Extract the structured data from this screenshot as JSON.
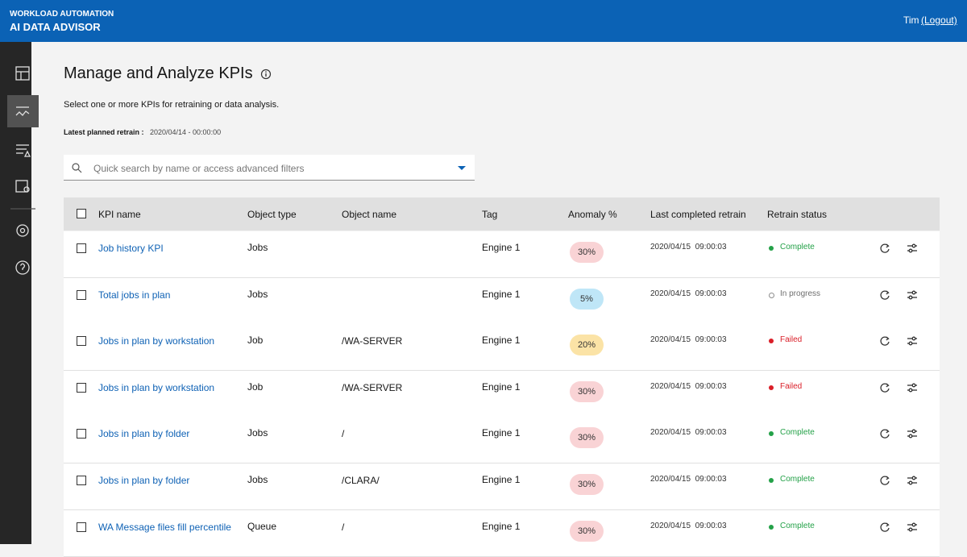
{
  "header": {
    "product_line": "WORKLOAD AUTOMATION",
    "title": "AI DATA ADVISOR",
    "user": "Tim",
    "logout": "(Logout)"
  },
  "page": {
    "title": "Manage and Analyze KPIs",
    "description": "Select one or more KPIs for retraining or data analysis.",
    "retrain_label": "Latest planned retrain :",
    "retrain_value": "2020/04/14 - 00:00:00",
    "search_placeholder": "Quick search by name or access advanced filters"
  },
  "table": {
    "columns": [
      "KPI name",
      "Object type",
      "Object name",
      "Tag",
      "Anomaly %",
      "Last completed retrain",
      "Retrain status"
    ],
    "rows": [
      {
        "kpi_name": "Job history KPI",
        "object_type": "Jobs",
        "object_name": null,
        "tag": "Engine 1",
        "anomaly": "30%",
        "anomaly_color": "#f9d3d5",
        "last_retrain": "2020/04/15  09:00:03",
        "retrain_status": "Complete",
        "status_color": "#24a148",
        "status_filled": true
      },
      {
        "kpi_name": "Total jobs in plan",
        "object_type": "Jobs",
        "object_name": null,
        "tag": "Engine 1",
        "anomaly": "5%",
        "anomaly_color": "#bfe6f7",
        "last_retrain": "2020/04/15  09:00:03",
        "retrain_status": "In progress",
        "status_color": "#8d8d8d",
        "status_filled": false
      },
      {
        "kpi_name": "Jobs in plan by workstation",
        "object_type": "Job",
        "object_name": "/WA-SERVER",
        "tag": "Engine 1",
        "anomaly": "20%",
        "anomaly_color": "#fbe3a6",
        "last_retrain": "2020/04/15  09:00:03",
        "retrain_status": "Failed",
        "status_color": "#da1e28",
        "status_filled": true
      },
      {
        "kpi_name": "Jobs in plan by workstation",
        "object_type": "Job",
        "object_name": "/WA-SERVER",
        "tag": "Engine 1",
        "anomaly": "30%",
        "anomaly_color": "#f9d3d5",
        "last_retrain": "2020/04/15  09:00:03",
        "retrain_status": "Failed",
        "status_color": "#da1e28",
        "status_filled": true
      },
      {
        "kpi_name": "Jobs in plan by folder",
        "object_type": "Jobs",
        "object_name": "/",
        "tag": "Engine 1",
        "anomaly": "30%",
        "anomaly_color": "#f9d3d5",
        "last_retrain": "2020/04/15  09:00:03",
        "retrain_status": "Complete",
        "status_color": "#24a148",
        "status_filled": true
      },
      {
        "kpi_name": "Jobs in plan by folder",
        "object_type": "Jobs",
        "object_name": "/CLARA/",
        "tag": "Engine 1",
        "anomaly": "30%",
        "anomaly_color": "#f9d3d5",
        "last_retrain": "2020/04/15  09:00:03",
        "retrain_status": "Complete",
        "status_color": "#24a148",
        "status_filled": true
      },
      {
        "kpi_name": "WA Message files fill percentile",
        "object_type": "Queue",
        "object_name": "/",
        "tag": "Engine 1",
        "anomaly": "30%",
        "anomaly_color": "#f9d3d5",
        "last_retrain": "2020/04/15  09:00:03",
        "retrain_status": "Complete",
        "status_color": "#24a148",
        "status_filled": true
      }
    ]
  }
}
